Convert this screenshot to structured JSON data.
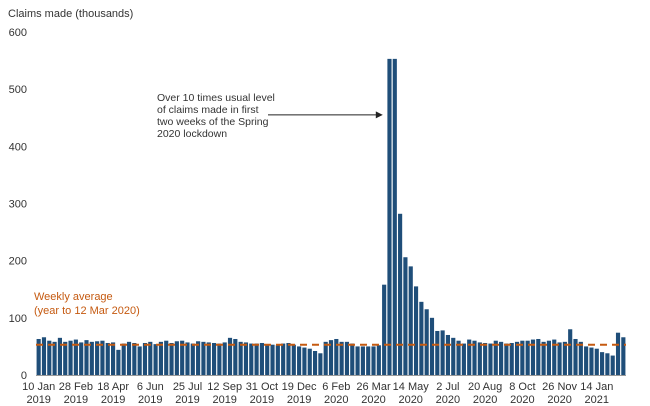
{
  "chart_data": {
    "type": "bar",
    "ylabel": "Claims made (thousands)",
    "ylim": [
      0,
      600
    ],
    "yticks": [
      0,
      100,
      200,
      300,
      400,
      500,
      600
    ],
    "grid": false,
    "bar_color": "#1f4e79",
    "avg_color": "#c55a11",
    "x_ticks": [
      {
        "index": 0,
        "line1": "10 Jan",
        "line2": "2019"
      },
      {
        "index": 7,
        "line1": "28 Feb",
        "line2": "2019"
      },
      {
        "index": 14,
        "line1": "18 Apr",
        "line2": "2019"
      },
      {
        "index": 21,
        "line1": "6 Jun",
        "line2": "2019"
      },
      {
        "index": 28,
        "line1": "25 Jul",
        "line2": "2019"
      },
      {
        "index": 35,
        "line1": "12 Sep",
        "line2": "2019"
      },
      {
        "index": 42,
        "line1": "31 Oct",
        "line2": "2019"
      },
      {
        "index": 49,
        "line1": "19 Dec",
        "line2": "2019"
      },
      {
        "index": 56,
        "line1": "6 Feb",
        "line2": "2020"
      },
      {
        "index": 63,
        "line1": "26 Mar",
        "line2": "2020"
      },
      {
        "index": 70,
        "line1": "14 May",
        "line2": "2020"
      },
      {
        "index": 77,
        "line1": "2 Jul",
        "line2": "2020"
      },
      {
        "index": 84,
        "line1": "20 Aug",
        "line2": "2020"
      },
      {
        "index": 91,
        "line1": "8 Oct",
        "line2": "2020"
      },
      {
        "index": 98,
        "line1": "26 Nov",
        "line2": "2020"
      },
      {
        "index": 105,
        "line1": "14 Jan",
        "line2": "2021"
      }
    ],
    "values": [
      63,
      66,
      60,
      58,
      65,
      58,
      60,
      62,
      57,
      61,
      58,
      59,
      60,
      56,
      57,
      44,
      55,
      58,
      56,
      50,
      56,
      58,
      54,
      58,
      60,
      56,
      59,
      60,
      57,
      55,
      59,
      58,
      57,
      56,
      55,
      57,
      65,
      63,
      58,
      57,
      55,
      55,
      56,
      54,
      53,
      52,
      55,
      56,
      53,
      50,
      48,
      46,
      42,
      38,
      58,
      61,
      63,
      58,
      58,
      55,
      50,
      50,
      50,
      50,
      52,
      158,
      553,
      553,
      282,
      206,
      190,
      155,
      128,
      115,
      100,
      77,
      78,
      70,
      65,
      60,
      55,
      62,
      60,
      57,
      56,
      55,
      60,
      58,
      55,
      56,
      58,
      60,
      60,
      62,
      63,
      58,
      60,
      62,
      57,
      58,
      80,
      63,
      58,
      50,
      48,
      46,
      40,
      38,
      34,
      74,
      66
    ],
    "average": {
      "value": 53,
      "label_line1": "Weekly average",
      "label_line2": "(year to 12 Mar 2020)"
    },
    "annotation": {
      "lines": [
        "Over 10 times usual level",
        "of claims made in first",
        "two weeks of the Spring",
        "2020 lockdown"
      ],
      "target_index": 66,
      "target_value": 455
    }
  }
}
